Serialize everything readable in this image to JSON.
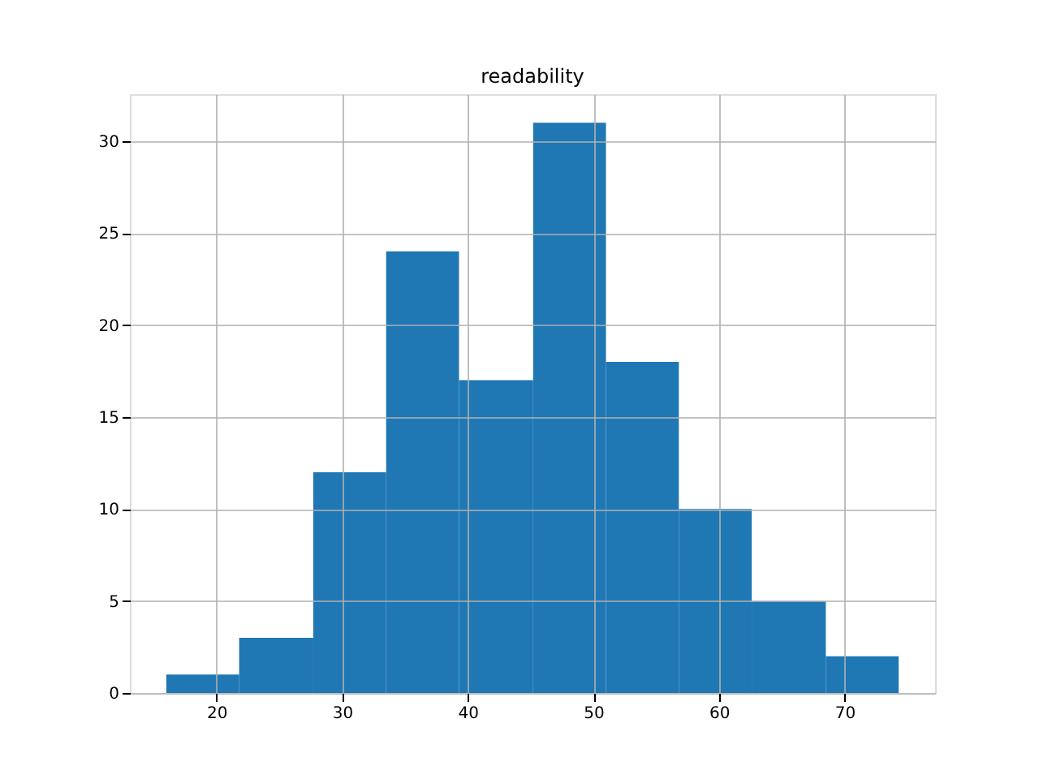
{
  "chart_data": {
    "type": "histogram",
    "title": "readability",
    "bins": [
      16.0,
      21.8,
      27.7,
      33.5,
      39.3,
      45.2,
      51.0,
      56.8,
      62.6,
      68.5,
      74.3
    ],
    "values": [
      1,
      3,
      12,
      24,
      17,
      31,
      18,
      10,
      5,
      2
    ],
    "color": "#1f77b4",
    "xlim": [
      13.1,
      77.2
    ],
    "xticks": [
      20,
      30,
      40,
      50,
      60,
      70
    ],
    "ylim": [
      0,
      32.55
    ],
    "yticks": [
      0,
      5,
      10,
      15,
      20,
      25,
      30
    ],
    "grid": true
  }
}
